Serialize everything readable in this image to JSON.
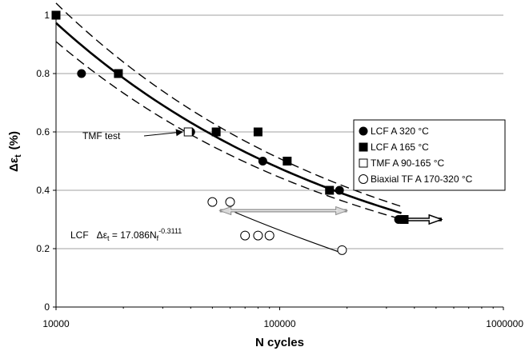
{
  "chart_data": {
    "type": "scatter",
    "title": "",
    "xlabel": "N cycles",
    "ylabel_main": "Δε",
    "ylabel_sub": "t",
    "ylabel_unit": "(%)",
    "xscale": "log",
    "xlim": [
      10000,
      1000000
    ],
    "ylim": [
      0,
      1
    ],
    "x_ticks": [
      10000,
      100000,
      1000000
    ],
    "x_tick_labels": [
      "10000",
      "100000",
      "1000000"
    ],
    "y_ticks": [
      0,
      0.2,
      0.4,
      0.6,
      0.8,
      1
    ],
    "y_tick_labels": [
      "0",
      "0.2",
      "0.4",
      "0.6",
      "0.8",
      "1"
    ],
    "grid": "horizontal",
    "legend_position": "right",
    "series": [
      {
        "name": "LCF A 320 °C",
        "marker": "filled-circle",
        "points": [
          [
            13000,
            0.8
          ],
          [
            40000,
            0.6
          ],
          [
            84000,
            0.5
          ],
          [
            185000,
            0.4
          ],
          [
            340000,
            0.3
          ]
        ]
      },
      {
        "name": "LCF A 165 °C",
        "marker": "filled-square",
        "points": [
          [
            10000,
            1.0
          ],
          [
            19000,
            0.8
          ],
          [
            52000,
            0.6
          ],
          [
            80000,
            0.6
          ],
          [
            108000,
            0.5
          ],
          [
            167000,
            0.4
          ],
          [
            360000,
            0.3
          ]
        ]
      },
      {
        "name": "TMF A 90-165 °C",
        "marker": "open-square",
        "points": [
          [
            39000,
            0.6
          ]
        ]
      },
      {
        "name": "Biaxial TF A 170-320 °C",
        "marker": "open-circle",
        "points": [
          [
            50000,
            0.36
          ],
          [
            60000,
            0.36
          ],
          [
            70000,
            0.245
          ],
          [
            80000,
            0.245
          ],
          [
            90000,
            0.245
          ],
          [
            190000,
            0.195
          ]
        ]
      }
    ],
    "fit": {
      "coefficient": 17.086,
      "exponent": -0.3111,
      "x_range": [
        10000,
        350000
      ],
      "band_factor": 1.07
    },
    "biaxial_trend": [
      [
        63000,
        0.325
      ],
      [
        100000,
        0.26
      ],
      [
        190000,
        0.185
      ]
    ],
    "annotations": {
      "tmf_label": "TMF test",
      "tmf_arrow_target": [
        38000,
        0.6
      ],
      "equation_prefix": "LCF",
      "equation_lhs": "Δε",
      "equation_lhs_sub": "t",
      "equation_mid": " = 17.086N",
      "equation_sub": "f",
      "equation_sup": "-0.3111",
      "double_arrow": {
        "from": [
          54000,
          0.33
        ],
        "to": [
          200000,
          0.33
        ]
      },
      "right_arrow": {
        "from": [
          340000,
          0.3
        ],
        "to": [
          530000,
          0.3
        ]
      }
    },
    "colors": {
      "fit": "#000000",
      "grid": "#a0a0a0",
      "double_arrow": "#8a8a8a"
    }
  }
}
